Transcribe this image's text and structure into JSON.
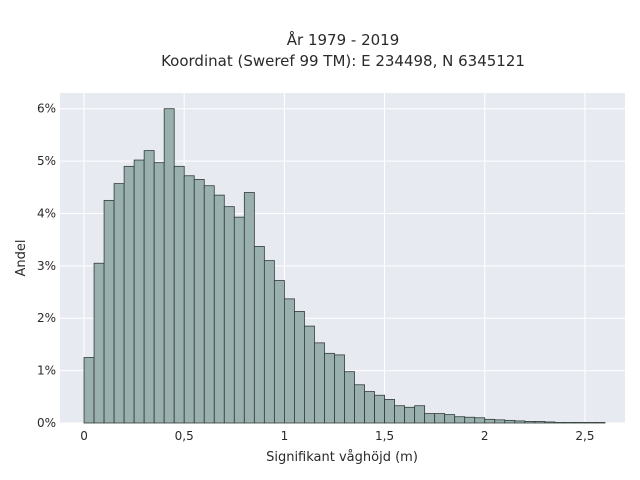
{
  "chart_data": {
    "type": "bar",
    "title": "År 1979 - 2019",
    "subtitle": "Koordinat (Sweref 99 TM): E 234498, N 6345121",
    "xlabel": "Signifikant våghöjd (m)",
    "ylabel": "Andel",
    "xlim": [
      -0.12,
      2.7
    ],
    "ylim": [
      0,
      6.3
    ],
    "grid": true,
    "x_ticks": [
      {
        "value": 0,
        "label": "0"
      },
      {
        "value": 0.5,
        "label": "0,5"
      },
      {
        "value": 1,
        "label": "1"
      },
      {
        "value": 1.5,
        "label": "1,5"
      },
      {
        "value": 2,
        "label": "2"
      },
      {
        "value": 2.5,
        "label": "2,5"
      }
    ],
    "y_ticks": [
      {
        "value": 0,
        "label": "0%"
      },
      {
        "value": 1,
        "label": "1%"
      },
      {
        "value": 2,
        "label": "2%"
      },
      {
        "value": 3,
        "label": "3%"
      },
      {
        "value": 4,
        "label": "4%"
      },
      {
        "value": 5,
        "label": "5%"
      },
      {
        "value": 6,
        "label": "6%"
      }
    ],
    "bin_width": 0.05,
    "bin_start": 0.0,
    "values": [
      1.25,
      3.05,
      4.25,
      4.57,
      4.9,
      5.02,
      5.2,
      4.97,
      6.0,
      4.9,
      4.72,
      4.65,
      4.53,
      4.35,
      4.13,
      3.93,
      4.4,
      3.37,
      3.1,
      2.72,
      2.37,
      2.13,
      1.85,
      1.53,
      1.33,
      1.3,
      0.98,
      0.73,
      0.6,
      0.53,
      0.45,
      0.33,
      0.3,
      0.33,
      0.18,
      0.18,
      0.16,
      0.12,
      0.11,
      0.1,
      0.07,
      0.06,
      0.05,
      0.04,
      0.03,
      0.03,
      0.02,
      0.01,
      0.01,
      0.01,
      0.01,
      0.01
    ],
    "colors": {
      "bar_fill": "#9ab0ae",
      "bar_stroke": "#2f3b38",
      "plot_background": "#e8eaf2",
      "grid": "#ffffff"
    }
  }
}
